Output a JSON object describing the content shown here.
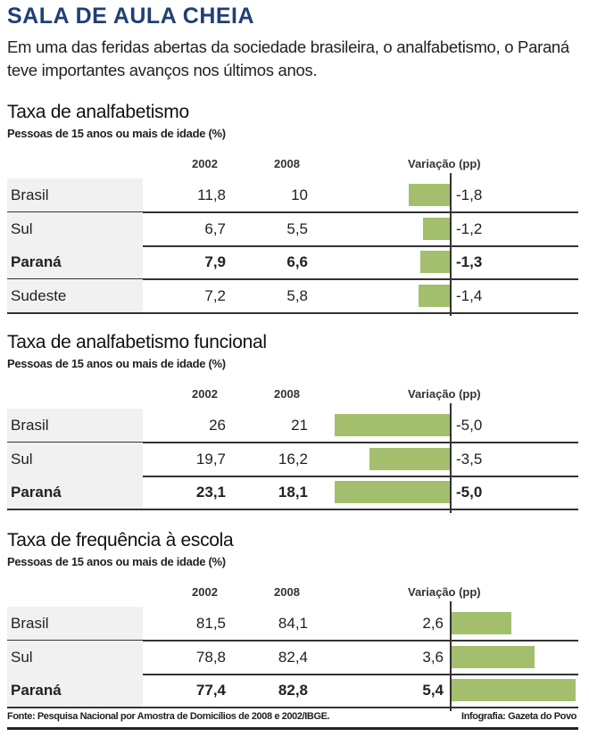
{
  "title": "SALA DE AULA CHEIA",
  "intro": "Em uma das feridas abertas da sociedade brasileira, o analfabetismo, o Paraná teve importantes avanços nos últimos anos.",
  "colors": {
    "title": "#1f3f77",
    "bar": "#a3bf6e"
  },
  "chart_data": [
    {
      "type": "table",
      "title": "Taxa de analfabetismo",
      "subtitle": "Pessoas de 15 anos ou mais de idade (%)",
      "columns": [
        "2002",
        "2008",
        "Variação (pp)"
      ],
      "rows": [
        {
          "label": "Brasil",
          "y2002": "11,8",
          "y2008": "10",
          "variation": -1.8,
          "variation_label": "-1,8",
          "bold": false
        },
        {
          "label": "Sul",
          "y2002": "6,7",
          "y2008": "5,5",
          "variation": -1.2,
          "variation_label": "-1,2",
          "bold": false
        },
        {
          "label": "Paraná",
          "y2002": "7,9",
          "y2008": "6,6",
          "variation": -1.3,
          "variation_label": "-1,3",
          "bold": true
        },
        {
          "label": "Sudeste",
          "y2002": "7,2",
          "y2008": "5,8",
          "variation": -1.4,
          "variation_label": "-1,4",
          "bold": false
        }
      ]
    },
    {
      "type": "table",
      "title": "Taxa de analfabetismo funcional",
      "subtitle": "Pessoas de 15 anos ou mais de idade (%)",
      "columns": [
        "2002",
        "2008",
        "Variação (pp)"
      ],
      "rows": [
        {
          "label": "Brasil",
          "y2002": "26",
          "y2008": "21",
          "variation": -5.0,
          "variation_label": "-5,0",
          "bold": false
        },
        {
          "label": "Sul",
          "y2002": "19,7",
          "y2008": "16,2",
          "variation": -3.5,
          "variation_label": "-3,5",
          "bold": false
        },
        {
          "label": "Paraná",
          "y2002": "23,1",
          "y2008": "18,1",
          "variation": -5.0,
          "variation_label": "-5,0",
          "bold": true
        }
      ]
    },
    {
      "type": "table",
      "title": "Taxa de frequência à escola",
      "subtitle": "Pessoas de 15 anos ou mais de idade (%)",
      "columns": [
        "2002",
        "2008",
        "Variação (pp)"
      ],
      "rows": [
        {
          "label": "Brasil",
          "y2002": "81,5",
          "y2008": "84,1",
          "variation": 2.6,
          "variation_label": "2,6",
          "bold": false
        },
        {
          "label": "Sul",
          "y2002": "78,8",
          "y2008": "82,4",
          "variation": 3.6,
          "variation_label": "3,6",
          "bold": false
        },
        {
          "label": "Paraná",
          "y2002": "77,4",
          "y2008": "82,8",
          "variation": 5.4,
          "variation_label": "5,4",
          "bold": true
        }
      ]
    }
  ],
  "footer": {
    "source": "Fonte: Pesquisa Nacional por Amostra de Domicílios de 2008 e 2002/IBGE.",
    "credit": "Infografia: Gazeta do Povo"
  }
}
